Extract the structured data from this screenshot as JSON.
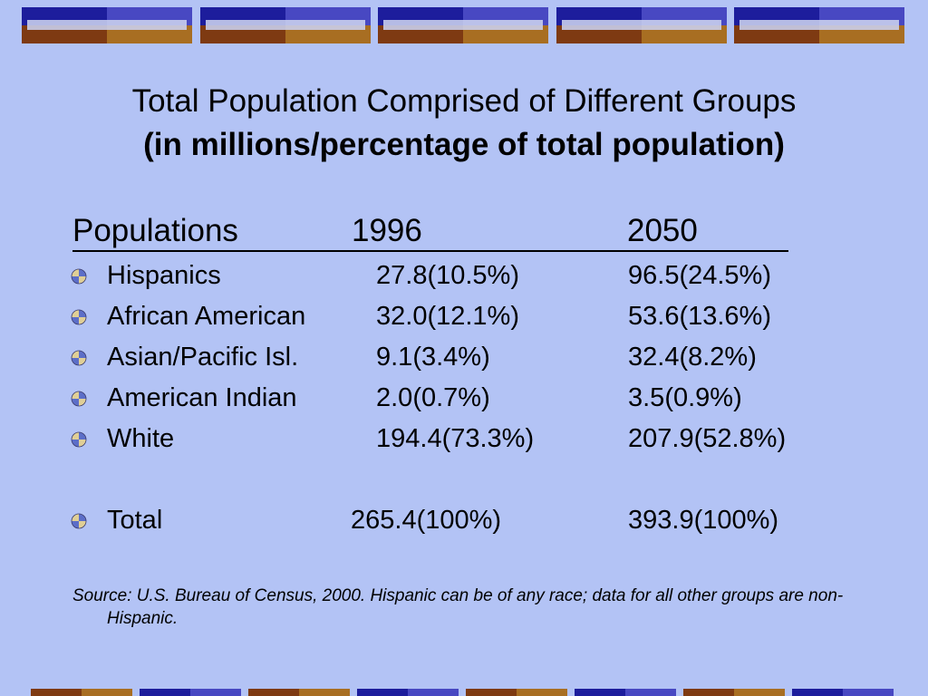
{
  "title": {
    "line1": "Total Population Comprised of Different Groups",
    "line2": "(in millions/percentage of total population)"
  },
  "table": {
    "headers": [
      "Populations",
      "1996",
      "2050"
    ],
    "rows": [
      {
        "label": "Hispanics",
        "v1996": "27.8(10.5%)",
        "v2050": "96.5(24.5%)"
      },
      {
        "label": "African American",
        "v1996": "32.0(12.1%)",
        "v2050": "53.6(13.6%)"
      },
      {
        "label": "Asian/Pacific Isl.",
        "v1996": "9.1(3.4%)",
        "v2050": "32.4(8.2%)"
      },
      {
        "label": "American Indian",
        "v1996": "2.0(0.7%)",
        "v2050": "3.5(0.9%)"
      },
      {
        "label": "White",
        "v1996": "194.4(73.3%)",
        "v2050": "207.9(52.8%)"
      }
    ],
    "total": {
      "label": "Total",
      "v1996": "265.4(100%)",
      "v2050": "393.9(100%)"
    }
  },
  "source": "Source: U.S. Bureau of Census, 2000. Hispanic can be of any race; data for all other groups are non-Hispanic.",
  "colors": {
    "background": "#b3c3f5",
    "accent_blue": "#1d1d9c",
    "accent_blue_light": "#4848c2",
    "accent_brown": "#7e3a12",
    "accent_gold": "#a86e22"
  },
  "icons": {
    "bullet": "quartered-circle-bullet-icon"
  }
}
